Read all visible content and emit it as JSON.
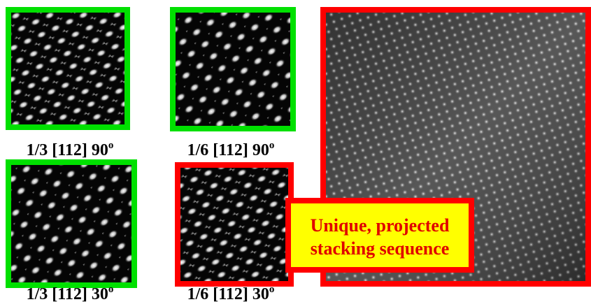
{
  "panels": [
    {
      "label": {
        "text": "1/3 [112] 90",
        "sup": "o"
      }
    },
    {
      "label": {
        "text": "1/6 [112] 90",
        "sup": "o"
      }
    },
    {
      "label": {
        "text": "1/3 [112] 30",
        "sup": "o"
      }
    },
    {
      "label": {
        "text": "1/6 [112] 30",
        "sup": "o"
      }
    }
  ],
  "callout": {
    "lines": [
      "Unique, projected",
      "stacking sequence"
    ]
  }
}
